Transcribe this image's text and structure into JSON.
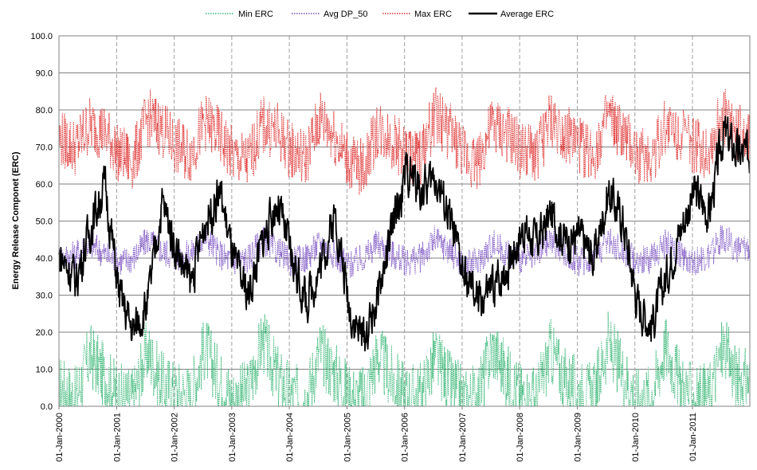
{
  "chart_data": {
    "type": "line",
    "title": "",
    "ylabel": "Energy Release Componet (ERC)",
    "xlabel": "",
    "ylim": [
      0,
      100
    ],
    "y_ticks": [
      "0.0",
      "10.0",
      "20.0",
      "30.0",
      "40.0",
      "50.0",
      "60.0",
      "70.0",
      "80.0",
      "90.0",
      "100.0"
    ],
    "x_ticks": [
      "01-Jan-2000",
      "01-Jan-2001",
      "01-Jan-2002",
      "01-Jan-2003",
      "01-Jan-2004",
      "01-Jan-2005",
      "01-Jan-2006",
      "01-Jan-2007",
      "01-Jan-2008",
      "01-Jan-2009",
      "01-Jan-2010",
      "01-Jan-2011"
    ],
    "x_range": [
      "2000-01-01",
      "2011-12-31"
    ],
    "grid": "horizontal major lines, vertical dashed at each year",
    "legend_position": "top",
    "x": [
      "2000-01",
      "2000-04",
      "2000-07",
      "2000-10",
      "2001-01",
      "2001-04",
      "2001-07",
      "2001-10",
      "2002-01",
      "2002-04",
      "2002-07",
      "2002-10",
      "2003-01",
      "2003-04",
      "2003-07",
      "2003-10",
      "2004-01",
      "2004-04",
      "2004-07",
      "2004-10",
      "2005-01",
      "2005-04",
      "2005-07",
      "2005-10",
      "2006-01",
      "2006-04",
      "2006-07",
      "2006-10",
      "2007-01",
      "2007-04",
      "2007-07",
      "2007-10",
      "2008-01",
      "2008-04",
      "2008-07",
      "2008-10",
      "2009-01",
      "2009-04",
      "2009-07",
      "2009-10",
      "2010-01",
      "2010-04",
      "2010-07",
      "2010-10",
      "2011-01",
      "2011-04",
      "2011-07",
      "2011-10"
    ],
    "series": [
      {
        "name": "Min ERC",
        "color": "#3cb878",
        "style": "dotted",
        "values": [
          5,
          2,
          14,
          8,
          3,
          2,
          15,
          6,
          4,
          3,
          16,
          7,
          2,
          4,
          18,
          8,
          3,
          2,
          15,
          9,
          3,
          2,
          14,
          7,
          3,
          3,
          13,
          6,
          2,
          3,
          16,
          8,
          3,
          2,
          15,
          7,
          4,
          3,
          17,
          9,
          2,
          3,
          16,
          6,
          2,
          3,
          16,
          7
        ]
      },
      {
        "name": "Avg DP_50",
        "color": "#7b52c2",
        "style": "dotted",
        "values": [
          40,
          41,
          44,
          41,
          39,
          40,
          45,
          42,
          40,
          41,
          46,
          41,
          39,
          40,
          45,
          42,
          39,
          40,
          44,
          41,
          38,
          40,
          44,
          41,
          39,
          40,
          45,
          42,
          38,
          39,
          44,
          41,
          40,
          40,
          45,
          41,
          39,
          40,
          45,
          42,
          39,
          40,
          44,
          41,
          39,
          40,
          46,
          42
        ]
      },
      {
        "name": "Max ERC",
        "color": "#e03030",
        "style": "dotted",
        "values": [
          72,
          70,
          76,
          74,
          68,
          66,
          78,
          75,
          70,
          68,
          77,
          73,
          67,
          66,
          76,
          74,
          69,
          67,
          78,
          73,
          66,
          64,
          75,
          72,
          68,
          67,
          79,
          74,
          68,
          66,
          76,
          73,
          69,
          68,
          77,
          74,
          70,
          68,
          78,
          73,
          68,
          67,
          76,
          74,
          70,
          69,
          79,
          74
        ]
      },
      {
        "name": "Average ERC",
        "color": "#000000",
        "style": "solid",
        "values": [
          40,
          34,
          48,
          60,
          30,
          20,
          28,
          55,
          42,
          33,
          50,
          58,
          38,
          30,
          45,
          55,
          40,
          28,
          38,
          52,
          26,
          18,
          30,
          48,
          64,
          58,
          62,
          50,
          34,
          28,
          32,
          38,
          48,
          44,
          52,
          45,
          46,
          40,
          58,
          50,
          28,
          22,
          35,
          48,
          58,
          52,
          74,
          68
        ]
      }
    ]
  }
}
